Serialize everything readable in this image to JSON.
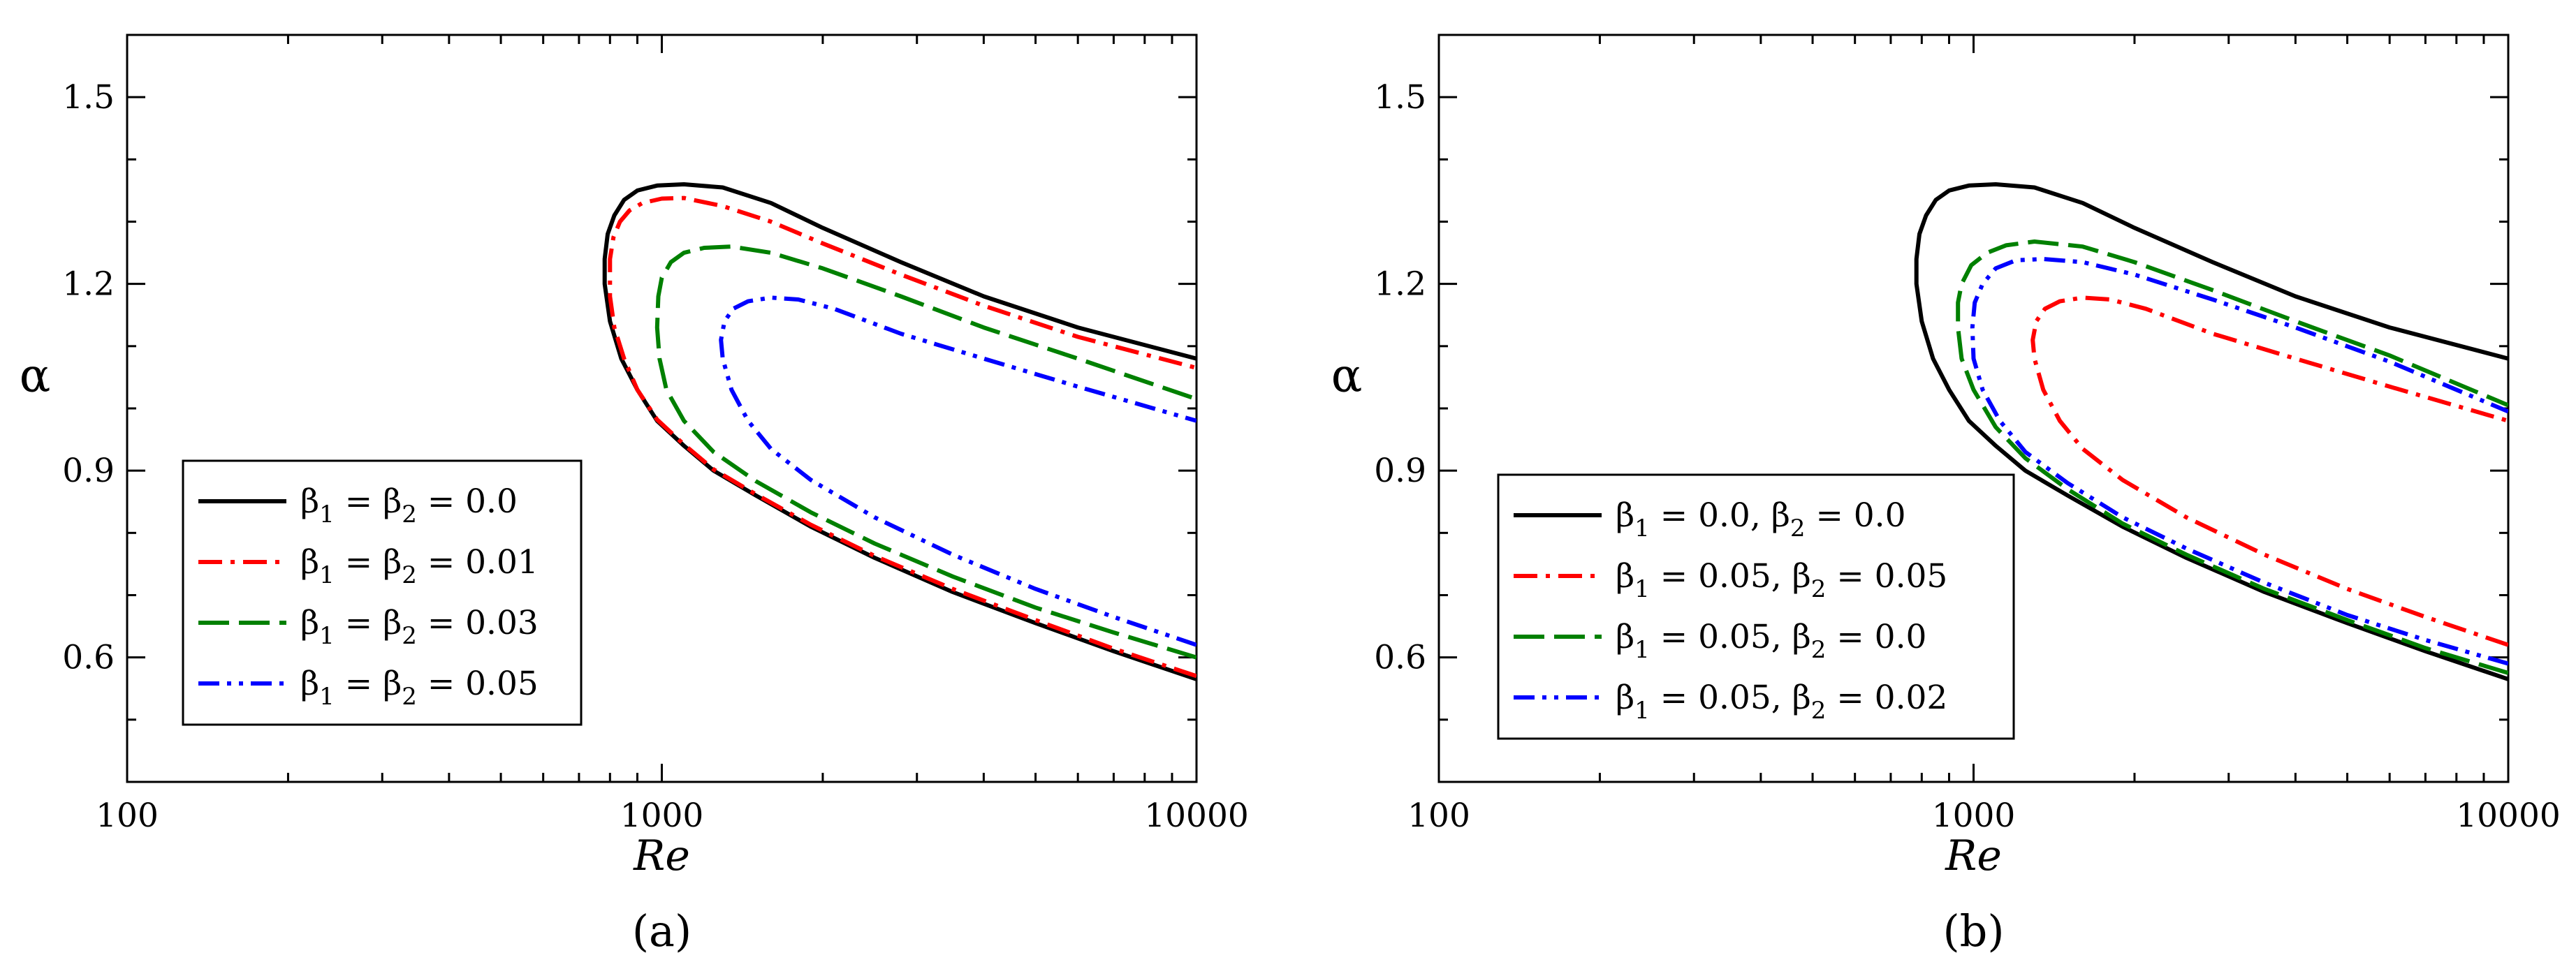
{
  "chart_data": [
    {
      "type": "line",
      "panel": "a",
      "caption": "(a)",
      "xlabel": "Re",
      "ylabel": "α",
      "xscale": "log",
      "xlim": [
        100,
        10000
      ],
      "ylim": [
        0.4,
        1.6
      ],
      "xticks": [
        100,
        1000,
        10000
      ],
      "xtick_labels": [
        "100",
        "1000",
        "10000"
      ],
      "yticks": [
        0.6,
        0.9,
        1.2,
        1.5
      ],
      "ytick_labels": [
        "0.6",
        "0.9",
        "1.2",
        "1.5"
      ],
      "legend_position": "lower-left",
      "series": [
        {
          "name": "β1 = β2 = 0.0",
          "legend": {
            "main": "β",
            "s1": "1",
            "mid": " = β",
            "s2": "2",
            "rest": " = 0.0"
          },
          "color": "#000000",
          "dash": "solid",
          "x": [
            10000,
            7000,
            5000,
            3500,
            2500,
            1900,
            1500,
            1250,
            1100,
            980,
            900,
            840,
            800,
            782,
            782,
            792,
            815,
            850,
            900,
            980,
            1100,
            1300,
            1600,
            2000,
            2800,
            4000,
            6000,
            10000
          ],
          "y": [
            0.565,
            0.61,
            0.655,
            0.705,
            0.76,
            0.81,
            0.86,
            0.9,
            0.94,
            0.98,
            1.03,
            1.08,
            1.14,
            1.2,
            1.24,
            1.28,
            1.31,
            1.335,
            1.35,
            1.358,
            1.36,
            1.355,
            1.33,
            1.29,
            1.235,
            1.18,
            1.13,
            1.08
          ]
        },
        {
          "name": "β1 = β2 = 0.01",
          "legend": {
            "main": "β",
            "s1": "1",
            "mid": " = β",
            "s2": "2",
            "rest": " = 0.01"
          },
          "color": "#ff0000",
          "dash": "dashdot",
          "x": [
            10000,
            7000,
            5000,
            3500,
            2500,
            1900,
            1500,
            1250,
            1100,
            980,
            900,
            850,
            815,
            800,
            800,
            812,
            835,
            870,
            920,
            1000,
            1100,
            1300,
            1600,
            2000,
            2800,
            4000,
            6000,
            10000
          ],
          "y": [
            0.57,
            0.614,
            0.66,
            0.71,
            0.763,
            0.813,
            0.862,
            0.902,
            0.942,
            0.982,
            1.03,
            1.08,
            1.13,
            1.18,
            1.24,
            1.275,
            1.3,
            1.318,
            1.33,
            1.337,
            1.338,
            1.325,
            1.3,
            1.265,
            1.215,
            1.165,
            1.115,
            1.065
          ]
        },
        {
          "name": "β1 = β2 = 0.03",
          "legend": {
            "main": "β",
            "s1": "1",
            "mid": " = β",
            "s2": "2",
            "rest": " = 0.03"
          },
          "color": "#008000",
          "dash": "dash",
          "x": [
            10000,
            7000,
            5000,
            3500,
            2500,
            1900,
            1500,
            1250,
            1100,
            1020,
            990,
            980,
            985,
            1000,
            1040,
            1100,
            1200,
            1350,
            1600,
            2000,
            2800,
            4000,
            6000,
            10000
          ],
          "y": [
            0.6,
            0.64,
            0.68,
            0.73,
            0.783,
            0.833,
            0.883,
            0.93,
            0.98,
            1.03,
            1.08,
            1.13,
            1.18,
            1.21,
            1.235,
            1.25,
            1.258,
            1.26,
            1.25,
            1.225,
            1.18,
            1.13,
            1.08,
            1.015
          ]
        },
        {
          "name": "β1 = β2 = 0.05",
          "legend": {
            "main": "β",
            "s1": "1",
            "mid": " = β",
            "s2": "2",
            "rest": " = 0.05"
          },
          "color": "#0000ff",
          "dash": "dashdotdot",
          "x": [
            10000,
            7000,
            5000,
            3500,
            2500,
            1900,
            1600,
            1450,
            1350,
            1300,
            1290,
            1310,
            1360,
            1450,
            1600,
            1800,
            2100,
            2800,
            4000,
            6000,
            10000
          ],
          "y": [
            0.62,
            0.665,
            0.71,
            0.765,
            0.825,
            0.885,
            0.935,
            0.98,
            1.03,
            1.08,
            1.11,
            1.14,
            1.16,
            1.172,
            1.178,
            1.175,
            1.16,
            1.12,
            1.08,
            1.035,
            0.98
          ]
        }
      ]
    },
    {
      "type": "line",
      "panel": "b",
      "caption": "(b)",
      "xlabel": "Re",
      "ylabel": "α",
      "xscale": "log",
      "xlim": [
        100,
        10000
      ],
      "ylim": [
        0.4,
        1.6
      ],
      "xticks": [
        100,
        1000,
        10000
      ],
      "xtick_labels": [
        "100",
        "1000",
        "10000"
      ],
      "yticks": [
        0.6,
        0.9,
        1.2,
        1.5
      ],
      "ytick_labels": [
        "0.6",
        "0.9",
        "1.2",
        "1.5"
      ],
      "legend_position": "lower-left",
      "series": [
        {
          "name": "β1 = 0.0, β2 = 0.0",
          "legend": {
            "main": "β",
            "s1": "1",
            "mid": " = 0.0, β",
            "s2": "2",
            "rest": " = 0.0"
          },
          "color": "#000000",
          "dash": "solid",
          "x": [
            10000,
            7000,
            5000,
            3500,
            2500,
            1900,
            1500,
            1250,
            1100,
            980,
            900,
            840,
            800,
            782,
            782,
            792,
            815,
            850,
            900,
            980,
            1100,
            1300,
            1600,
            2000,
            2800,
            4000,
            6000,
            10000
          ],
          "y": [
            0.565,
            0.61,
            0.655,
            0.705,
            0.76,
            0.81,
            0.86,
            0.9,
            0.94,
            0.98,
            1.03,
            1.08,
            1.14,
            1.2,
            1.24,
            1.28,
            1.31,
            1.335,
            1.35,
            1.358,
            1.36,
            1.355,
            1.33,
            1.29,
            1.235,
            1.18,
            1.13,
            1.08
          ]
        },
        {
          "name": "β1 = 0.05, β2 = 0.05",
          "legend": {
            "main": "β",
            "s1": "1",
            "mid": " = 0.05, β",
            "s2": "2",
            "rest": " = 0.05"
          },
          "color": "#ff0000",
          "dash": "dashdot",
          "x": [
            10000,
            7000,
            5000,
            3500,
            2500,
            1900,
            1600,
            1450,
            1350,
            1300,
            1290,
            1310,
            1360,
            1450,
            1600,
            1800,
            2100,
            2800,
            4000,
            6000,
            10000
          ],
          "y": [
            0.62,
            0.665,
            0.71,
            0.765,
            0.825,
            0.885,
            0.935,
            0.98,
            1.03,
            1.08,
            1.11,
            1.14,
            1.16,
            1.172,
            1.178,
            1.175,
            1.16,
            1.12,
            1.08,
            1.035,
            0.98
          ]
        },
        {
          "name": "β1 = 0.05, β2 = 0.0",
          "legend": {
            "main": "β",
            "s1": "1",
            "mid": " = 0.05, β",
            "s2": "2",
            "rest": " = 0.0"
          },
          "color": "#008000",
          "dash": "dash",
          "x": [
            10000,
            7000,
            5000,
            3500,
            2500,
            1900,
            1500,
            1250,
            1100,
            1000,
            950,
            935,
            935,
            950,
            990,
            1060,
            1150,
            1300,
            1600,
            2000,
            2800,
            4000,
            6000,
            10000
          ],
          "y": [
            0.575,
            0.615,
            0.66,
            0.71,
            0.765,
            0.815,
            0.87,
            0.92,
            0.97,
            1.03,
            1.08,
            1.13,
            1.17,
            1.2,
            1.23,
            1.25,
            1.262,
            1.268,
            1.26,
            1.235,
            1.19,
            1.14,
            1.085,
            1.005
          ]
        },
        {
          "name": "β1 = 0.05, β2 = 0.02",
          "legend": {
            "main": "β",
            "s1": "1",
            "mid": " = 0.05, β",
            "s2": "2",
            "rest": " = 0.02"
          },
          "color": "#0000ff",
          "dash": "dashdotdot",
          "x": [
            10000,
            7000,
            5000,
            3500,
            2500,
            1900,
            1500,
            1250,
            1120,
            1040,
            1000,
            995,
            1005,
            1040,
            1100,
            1200,
            1350,
            1600,
            2000,
            2800,
            4000,
            6000,
            10000
          ],
          "y": [
            0.59,
            0.628,
            0.668,
            0.72,
            0.775,
            0.825,
            0.88,
            0.93,
            0.98,
            1.03,
            1.08,
            1.13,
            1.17,
            1.2,
            1.225,
            1.238,
            1.24,
            1.235,
            1.215,
            1.175,
            1.13,
            1.075,
            0.995
          ]
        }
      ]
    }
  ]
}
